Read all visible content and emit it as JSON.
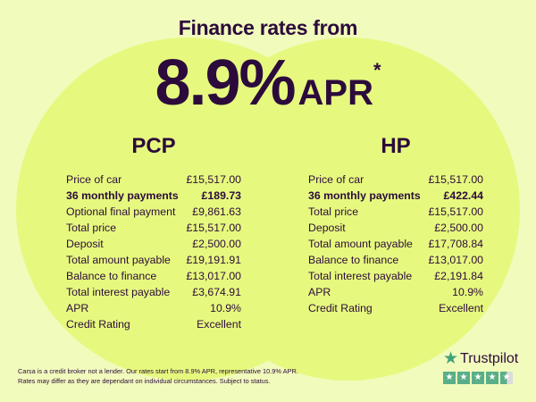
{
  "header": {
    "title": "Finance rates from",
    "rate": "8.9%",
    "rate_unit": "APR",
    "asterisk": "*"
  },
  "pcp": {
    "title": "PCP",
    "rows": [
      {
        "label": "Price of car",
        "value": "£15,517.00"
      },
      {
        "label": "36 monthly payments",
        "value": "£189.73",
        "bold": true
      },
      {
        "label": "Optional final payment",
        "value": "£9,861.63"
      },
      {
        "label": "Total price",
        "value": "£15,517.00"
      },
      {
        "label": "Deposit",
        "value": "£2,500.00"
      },
      {
        "label": "Total amount payable",
        "value": "£19,191.91"
      },
      {
        "label": "Balance to finance",
        "value": "£13,017.00"
      },
      {
        "label": "Total interest payable",
        "value": "£3,674.91"
      },
      {
        "label": "APR",
        "value": "10.9%"
      },
      {
        "label": "Credit Rating",
        "value": "Excellent"
      }
    ]
  },
  "hp": {
    "title": "HP",
    "rows": [
      {
        "label": "Price of car",
        "value": "£15,517.00"
      },
      {
        "label": "36 monthly payments",
        "value": "£422.44",
        "bold": true
      },
      {
        "label": "Total price",
        "value": "£15,517.00"
      },
      {
        "label": "Deposit",
        "value": "£2,500.00"
      },
      {
        "label": "Total amount payable",
        "value": "£17,708.84"
      },
      {
        "label": "Balance to finance",
        "value": "£13,017.00"
      },
      {
        "label": "Total interest payable",
        "value": "£2,191.84"
      },
      {
        "label": "APR",
        "value": "10.9%"
      },
      {
        "label": "Credit Rating",
        "value": "Excellent"
      }
    ]
  },
  "disclaimer": {
    "line1": "Carsa is a credit broker not a lender. Our rates start from 8.9% APR, representative 10.9% APR.",
    "line2": "Rates may differ as they are dependant on individual circumstances. Subject to status."
  },
  "trustpilot": {
    "label": "Trustpilot",
    "icon": "star-icon",
    "rating_stars": 4.5,
    "color": "#5aaf8a"
  },
  "colors": {
    "background": "#f1fbbc",
    "circle": "#e6f97e",
    "text": "#2c0b3c"
  }
}
